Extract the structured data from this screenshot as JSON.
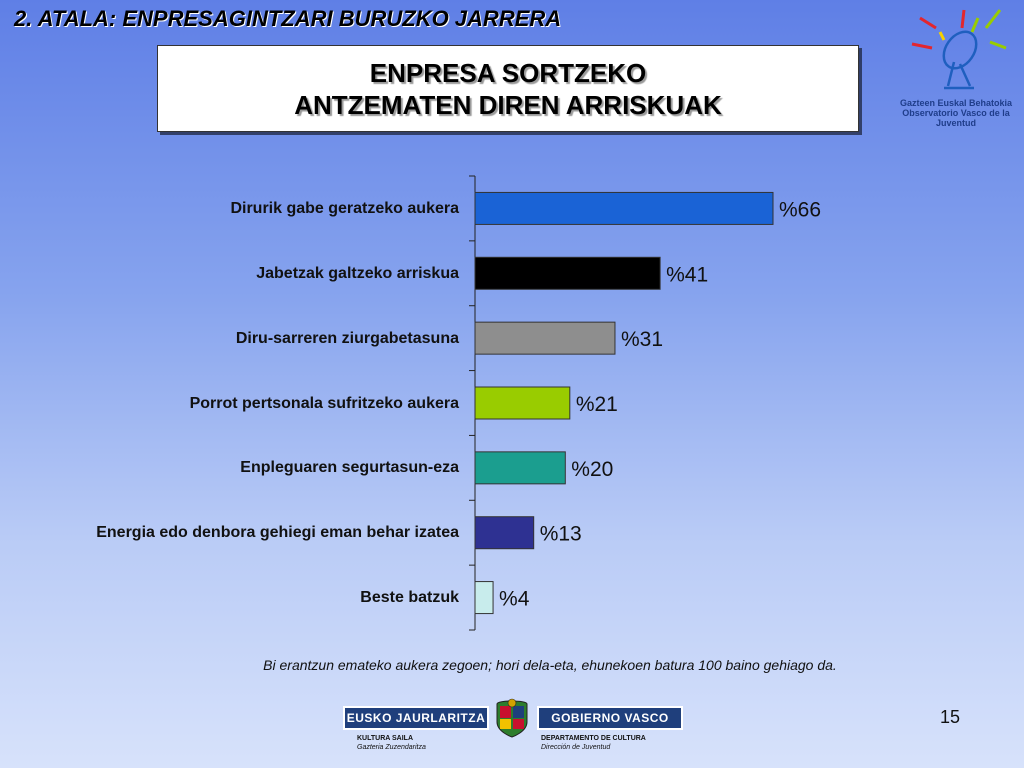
{
  "section_title": "2. ATALA: ENPRESAGINTZARI BURUZKO JARRERA",
  "main_title": {
    "line1": "ENPRESA SORTZEKO",
    "line2": "ANTZEMATEN DIREN ARRISKUAK"
  },
  "observatory": {
    "line1": "Gazteen Euskal Behatokia",
    "line2": "Observatorio Vasco de la Juventud",
    "icon": "satellite-dish-icon"
  },
  "chart_data": {
    "type": "bar",
    "orientation": "horizontal",
    "categories": [
      "Dirurik gabe geratzeko aukera",
      "Jabetzak galtzeko arriskua",
      "Diru-sarreren ziurgabetasuna",
      "Porrot pertsonala sufritzeko aukera",
      "Enpleguaren segurtasun-eza",
      "Energia edo denbora gehiegi eman behar izatea",
      "Beste batzuk"
    ],
    "values": [
      66,
      41,
      31,
      21,
      20,
      13,
      4
    ],
    "value_labels": [
      "%66",
      "%41",
      "%31",
      "%21",
      "%20",
      "%13",
      "%4"
    ],
    "colors": [
      "#1a63d6",
      "#000000",
      "#8e8e8e",
      "#99cc00",
      "#1b9e8f",
      "#2e3192",
      "#c8ecec"
    ],
    "xlim": [
      0,
      100
    ],
    "grid": false,
    "title": "",
    "xlabel": "",
    "ylabel": ""
  },
  "footnote": "Bi erantzun emateko aukera zegoen; hori dela-eta, ehunekoen batura 100 baino gehiago da.",
  "page_number": "15",
  "government": {
    "left_name": "EUSKO JAURLARITZA",
    "right_name": "GOBIERNO VASCO",
    "left_dept": "KULTURA SAILA",
    "left_sub": "Gazteria Zuzendaritza",
    "right_dept": "DEPARTAMENTO DE CULTURA",
    "right_sub": "Dirección de Juventud",
    "icon": "coat-of-arms-icon"
  }
}
